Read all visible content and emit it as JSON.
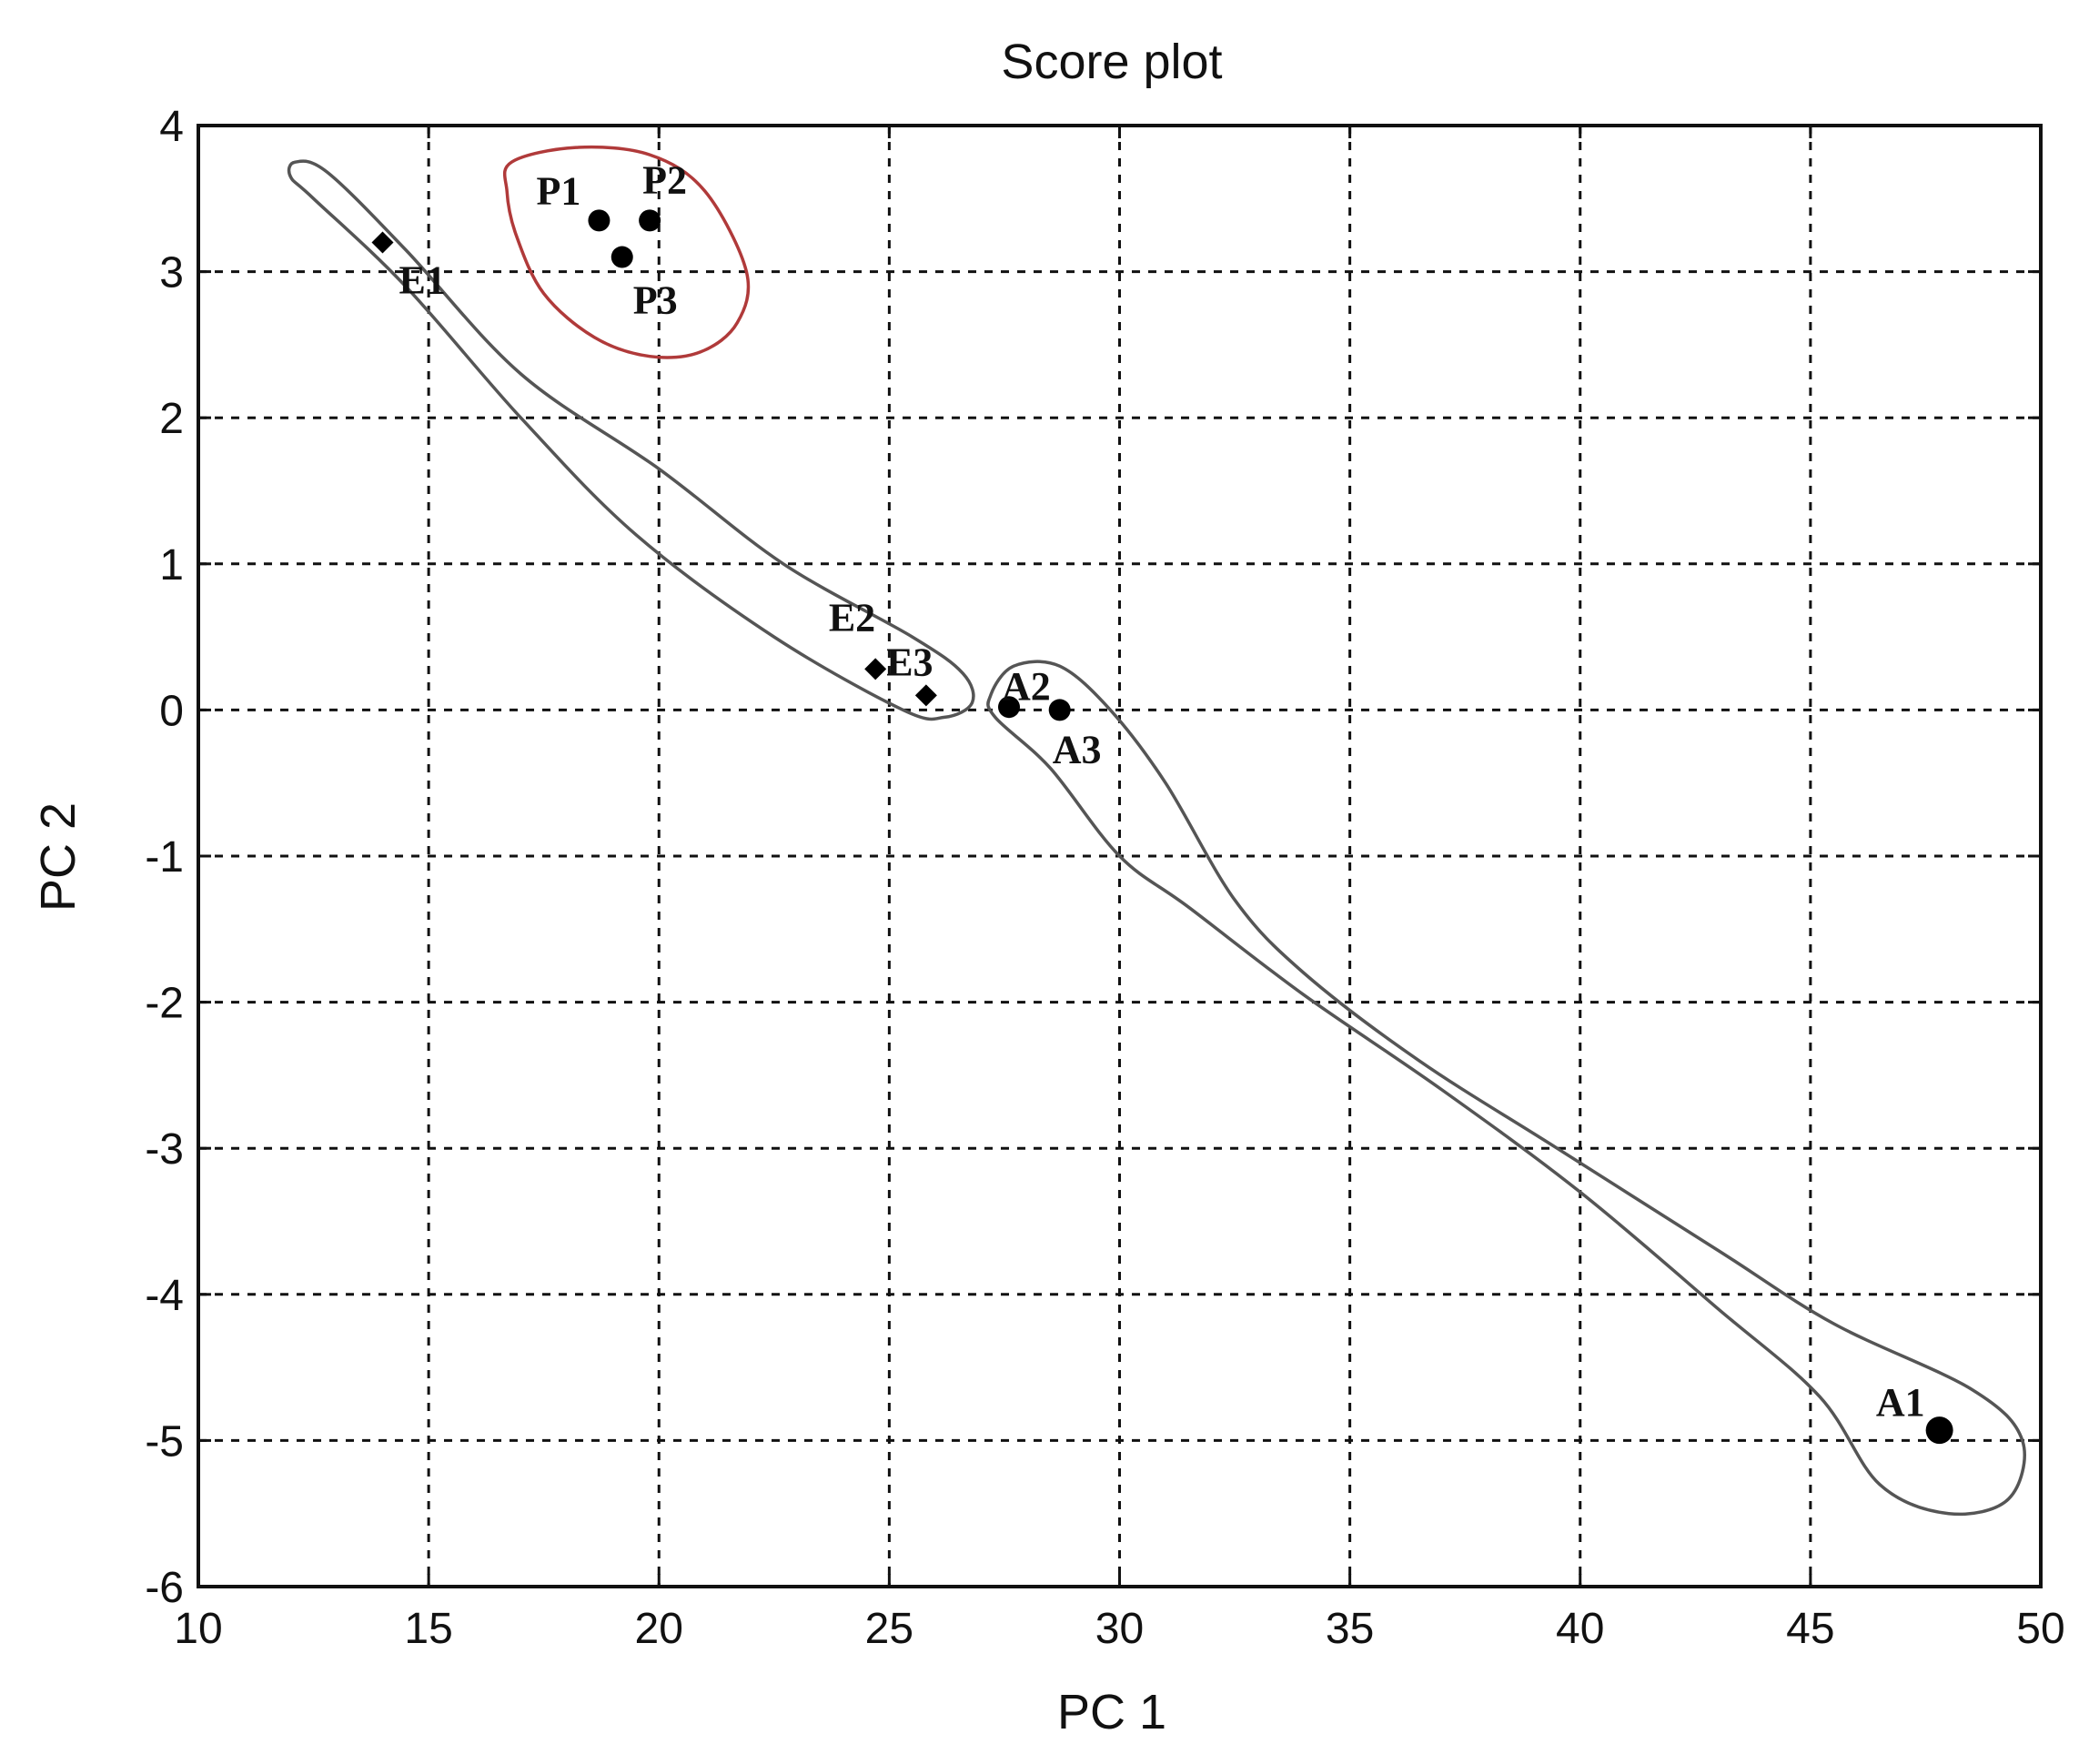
{
  "chart_data": {
    "type": "scatter",
    "title": "Score plot",
    "xlabel": "PC 1",
    "ylabel": "PC 2",
    "xlim": [
      10,
      50
    ],
    "ylim": [
      -6,
      4
    ],
    "xticks": [
      10,
      15,
      20,
      25,
      30,
      35,
      40,
      45,
      50
    ],
    "yticks": [
      -6,
      -5,
      -4,
      -3,
      -2,
      -1,
      0,
      1,
      2,
      3,
      4
    ],
    "grid": true,
    "points": [
      {
        "label": "E1",
        "x": 14.0,
        "y": 3.2
      },
      {
        "label": "P1",
        "x": 18.7,
        "y": 3.35
      },
      {
        "label": "P2",
        "x": 19.8,
        "y": 3.35
      },
      {
        "label": "P3",
        "x": 19.2,
        "y": 3.1
      },
      {
        "label": "E2",
        "x": 24.7,
        "y": 0.28
      },
      {
        "label": "E3",
        "x": 25.8,
        "y": 0.1
      },
      {
        "label": "A2",
        "x": 27.6,
        "y": 0.02
      },
      {
        "label": "A3",
        "x": 28.7,
        "y": 0.0
      },
      {
        "label": "A1",
        "x": 47.8,
        "y": -4.93
      }
    ],
    "clusters": [
      {
        "color": "#b03a3a",
        "outline": [
          [
            16.8,
            3.75
          ],
          [
            18.2,
            3.85
          ],
          [
            19.8,
            3.8
          ],
          [
            21.0,
            3.55
          ],
          [
            21.9,
            3.0
          ],
          [
            21.7,
            2.65
          ],
          [
            20.9,
            2.45
          ],
          [
            19.8,
            2.42
          ],
          [
            18.6,
            2.55
          ],
          [
            17.5,
            2.85
          ],
          [
            16.9,
            3.25
          ],
          [
            16.7,
            3.55
          ]
        ]
      },
      {
        "color": "#555555",
        "outline": [
          [
            12.1,
            3.75
          ],
          [
            12.8,
            3.68
          ],
          [
            14.5,
            3.15
          ],
          [
            17.0,
            2.3
          ],
          [
            20.0,
            1.65
          ],
          [
            22.7,
            1.0
          ],
          [
            25.5,
            0.5
          ],
          [
            26.6,
            0.25
          ],
          [
            26.8,
            0.05
          ],
          [
            26.2,
            -0.05
          ],
          [
            25.3,
            0.0
          ],
          [
            22.5,
            0.5
          ],
          [
            19.5,
            1.2
          ],
          [
            17.0,
            2.0
          ],
          [
            14.5,
            2.9
          ],
          [
            12.5,
            3.5
          ],
          [
            12.0,
            3.65
          ]
        ]
      },
      {
        "color": "#555555",
        "outline": [
          [
            27.2,
            0.1
          ],
          [
            27.7,
            0.3
          ],
          [
            28.7,
            0.3
          ],
          [
            29.8,
            0.0
          ],
          [
            31.0,
            -0.5
          ],
          [
            32.5,
            -1.3
          ],
          [
            34.0,
            -1.8
          ],
          [
            36.5,
            -2.4
          ],
          [
            39.5,
            -3.0
          ],
          [
            43.0,
            -3.7
          ],
          [
            45.5,
            -4.2
          ],
          [
            48.5,
            -4.65
          ],
          [
            49.6,
            -5.0
          ],
          [
            49.3,
            -5.4
          ],
          [
            48.0,
            -5.5
          ],
          [
            46.5,
            -5.3
          ],
          [
            45.2,
            -4.7
          ],
          [
            43.0,
            -4.1
          ],
          [
            40.0,
            -3.3
          ],
          [
            37.0,
            -2.6
          ],
          [
            34.0,
            -1.95
          ],
          [
            31.5,
            -1.35
          ],
          [
            30.0,
            -1.0
          ],
          [
            28.5,
            -0.4
          ],
          [
            27.3,
            -0.05
          ]
        ]
      }
    ]
  }
}
